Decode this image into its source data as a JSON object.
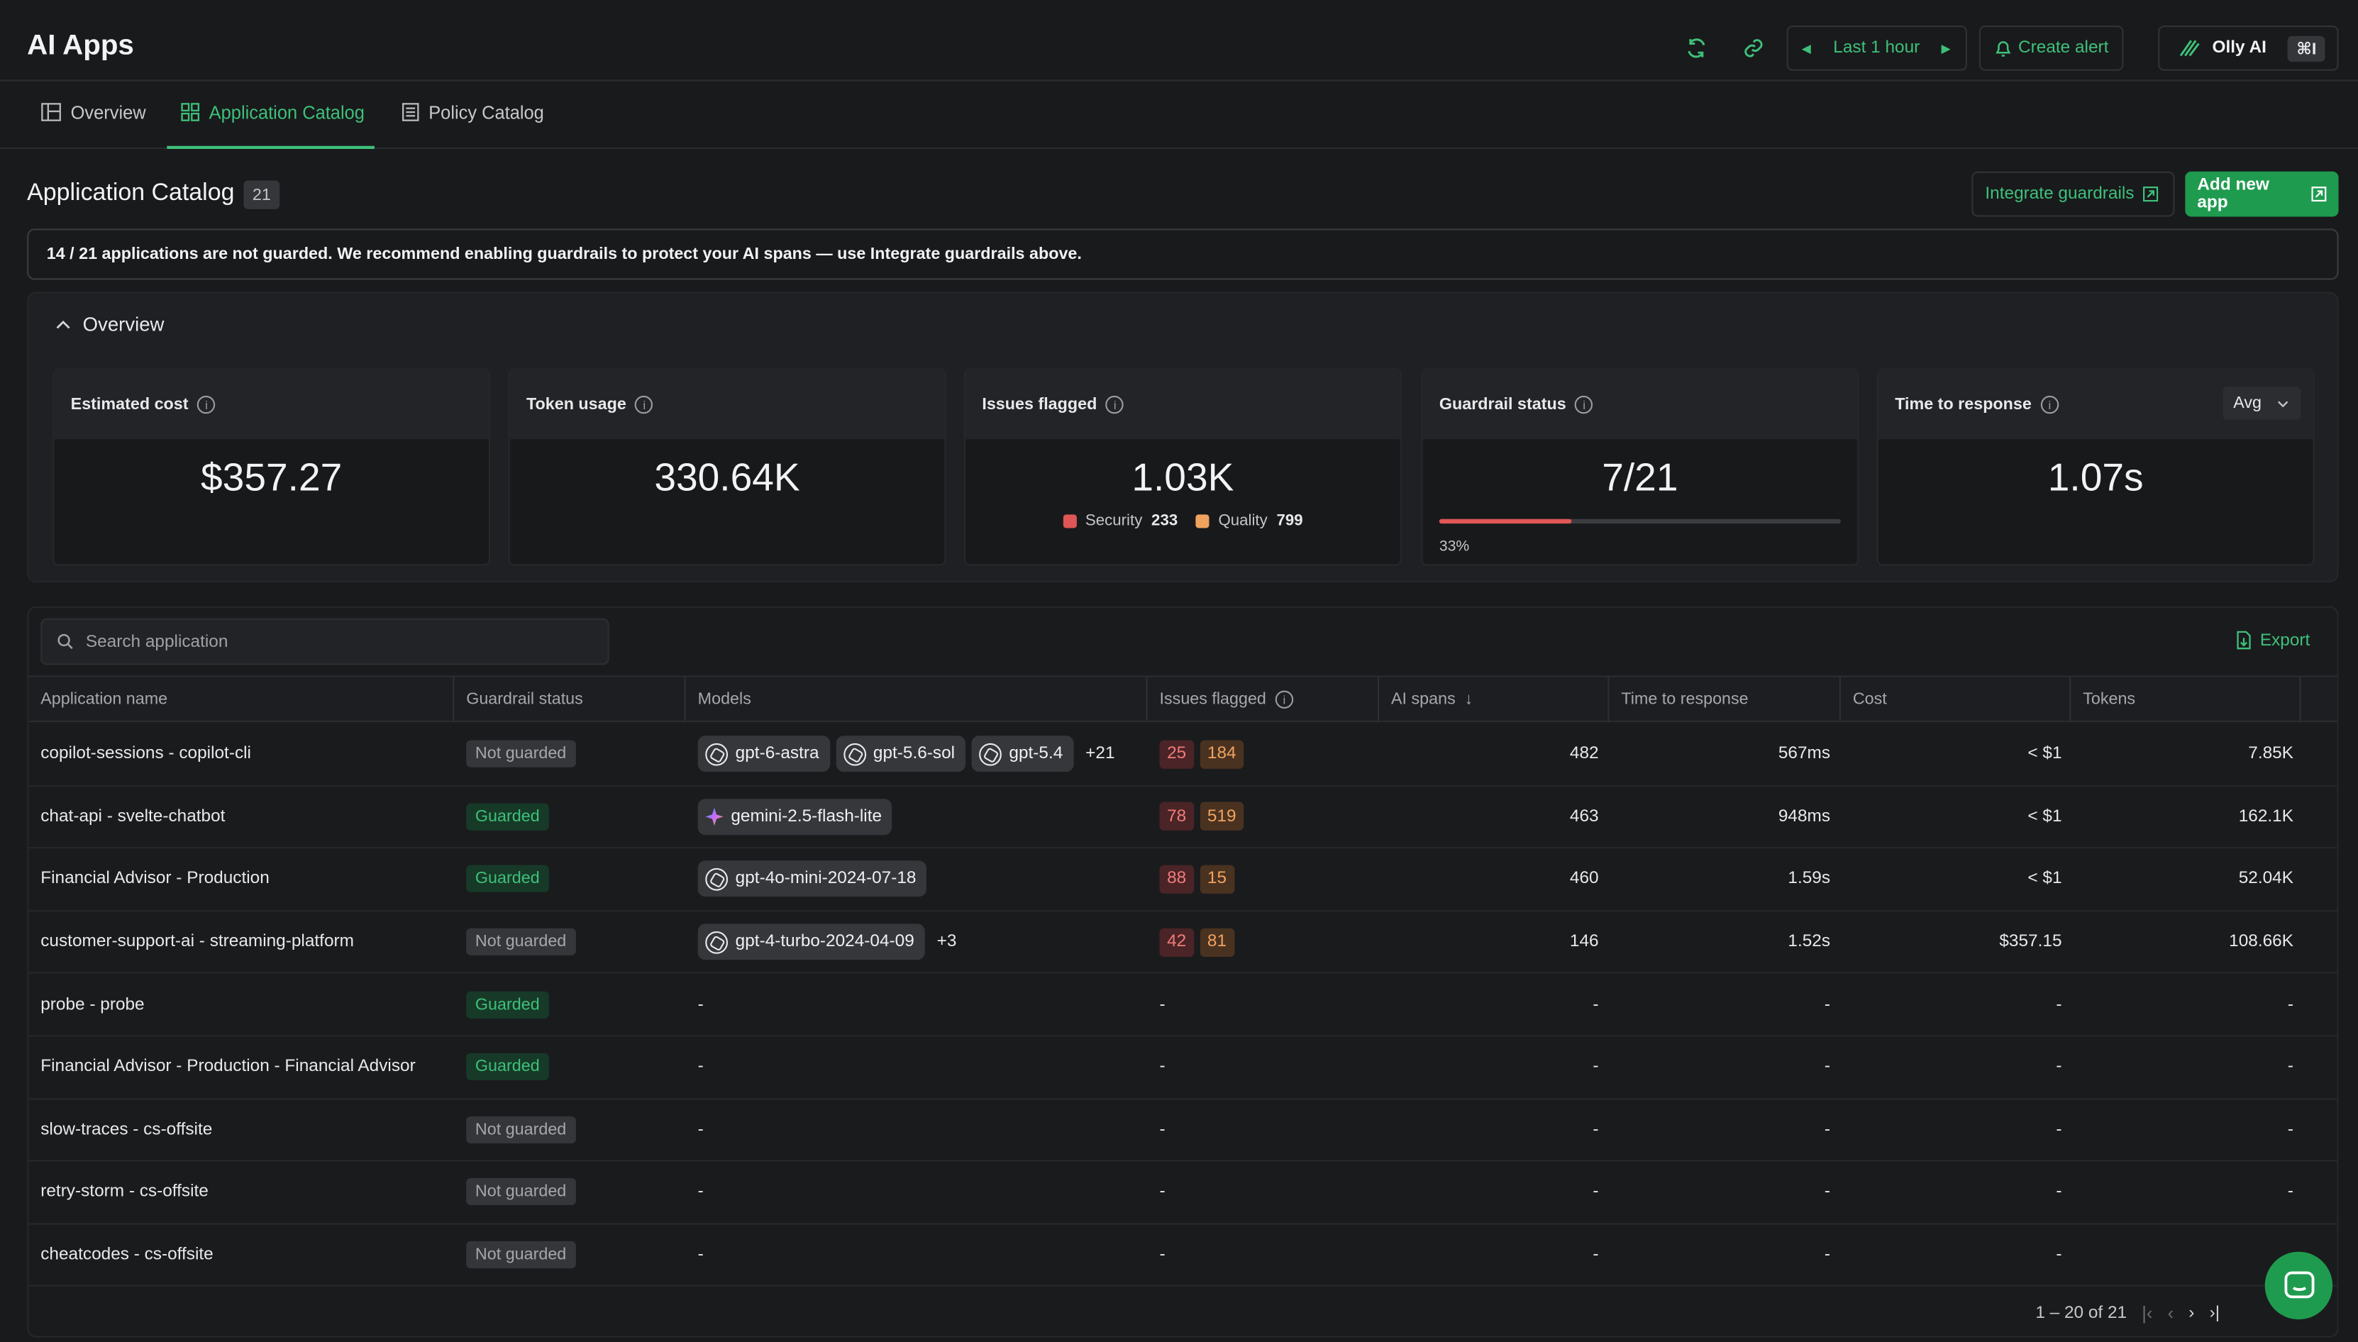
{
  "app_title": "AI Apps",
  "header": {
    "time_range": "Last 1 hour",
    "create_alert": "Create alert",
    "olly": "Olly AI",
    "shortcut": "⌘I"
  },
  "tabs": [
    {
      "label": "Overview"
    },
    {
      "label": "Application Catalog"
    },
    {
      "label": "Policy Catalog"
    }
  ],
  "catalog": {
    "title": "Application Catalog",
    "count": "21",
    "integrate_label": "Integrate guardrails",
    "add_label": "Add new app",
    "banner": "14 / 21 applications are not guarded. We recommend enabling guardrails to protect your AI spans — use Integrate guardrails above."
  },
  "overview": {
    "label": "Overview",
    "cost": {
      "label": "Estimated cost",
      "value": "$357.27"
    },
    "tokens": {
      "label": "Token usage",
      "value": "330.64K"
    },
    "issues": {
      "label": "Issues flagged",
      "value": "1.03K",
      "security_label": "Security",
      "security": "233",
      "quality_label": "Quality",
      "quality": "799"
    },
    "guardrail": {
      "label": "Guardrail status",
      "value": "7/21",
      "percent": "33%",
      "fraction": 0.33
    },
    "ttr": {
      "label": "Time to response",
      "value": "1.07s",
      "agg": "Avg"
    }
  },
  "table": {
    "search_placeholder": "Search application",
    "export": "Export",
    "columns": {
      "name": "Application name",
      "guardrail": "Guardrail status",
      "models": "Models",
      "issues": "Issues flagged",
      "spans": "AI spans",
      "ttr": "Time to response",
      "cost": "Cost",
      "tokens": "Tokens"
    },
    "rows": [
      {
        "name": "copilot-sessions - copilot-cli",
        "status": "Not guarded",
        "guarded": false,
        "models": [
          {
            "name": "gpt-6-astra",
            "icon": "openai-icon"
          },
          {
            "name": "gpt-5.6-sol",
            "icon": "openai-icon"
          },
          {
            "name": "gpt-5.4",
            "icon": "openai-icon"
          }
        ],
        "more": "+21",
        "sec": "25",
        "qual": "184",
        "spans": "482",
        "ttr": "567ms",
        "cost": "< $1",
        "tokens": "7.85K"
      },
      {
        "name": "chat-api - svelte-chatbot",
        "status": "Guarded",
        "guarded": true,
        "models": [
          {
            "name": "gemini-2.5-flash-lite",
            "icon": "gemini-icon"
          }
        ],
        "more": "",
        "sec": "78",
        "qual": "519",
        "spans": "463",
        "ttr": "948ms",
        "cost": "< $1",
        "tokens": "162.1K"
      },
      {
        "name": "Financial Advisor - Production",
        "status": "Guarded",
        "guarded": true,
        "models": [
          {
            "name": "gpt-4o-mini-2024-07-18",
            "icon": "openai-icon"
          }
        ],
        "more": "",
        "sec": "88",
        "qual": "15",
        "spans": "460",
        "ttr": "1.59s",
        "cost": "< $1",
        "tokens": "52.04K"
      },
      {
        "name": "customer-support-ai - streaming-platform",
        "status": "Not guarded",
        "guarded": false,
        "models": [
          {
            "name": "gpt-4-turbo-2024-04-09",
            "icon": "openai-icon"
          }
        ],
        "more": "+3",
        "sec": "42",
        "qual": "81",
        "spans": "146",
        "ttr": "1.52s",
        "cost": "$357.15",
        "tokens": "108.66K"
      },
      {
        "name": "probe - probe",
        "status": "Guarded",
        "guarded": true,
        "models": [],
        "more": "",
        "sec": "",
        "qual": "",
        "spans": "-",
        "ttr": "-",
        "cost": "-",
        "tokens": "-"
      },
      {
        "name": "Financial Advisor - Production - Financial Advisor",
        "status": "Guarded",
        "guarded": true,
        "models": [],
        "more": "",
        "sec": "",
        "qual": "",
        "spans": "-",
        "ttr": "-",
        "cost": "-",
        "tokens": "-"
      },
      {
        "name": "slow-traces - cs-offsite",
        "status": "Not guarded",
        "guarded": false,
        "models": [],
        "more": "",
        "sec": "",
        "qual": "",
        "spans": "-",
        "ttr": "-",
        "cost": "-",
        "tokens": "-"
      },
      {
        "name": "retry-storm - cs-offsite",
        "status": "Not guarded",
        "guarded": false,
        "models": [],
        "more": "",
        "sec": "",
        "qual": "",
        "spans": "-",
        "ttr": "-",
        "cost": "-",
        "tokens": "-"
      },
      {
        "name": "cheatcodes - cs-offsite",
        "status": "Not guarded",
        "guarded": false,
        "models": [],
        "more": "",
        "sec": "",
        "qual": "",
        "spans": "-",
        "ttr": "-",
        "cost": "-",
        "tokens": "-"
      }
    ],
    "empty": "-",
    "pagination": "1 – 20 of 21"
  },
  "colors": {
    "accent": "#3ec07a",
    "primary_button": "#1f9b4f",
    "security": "#e05656",
    "quality": "#f0a35e",
    "background": "#191a1c"
  }
}
